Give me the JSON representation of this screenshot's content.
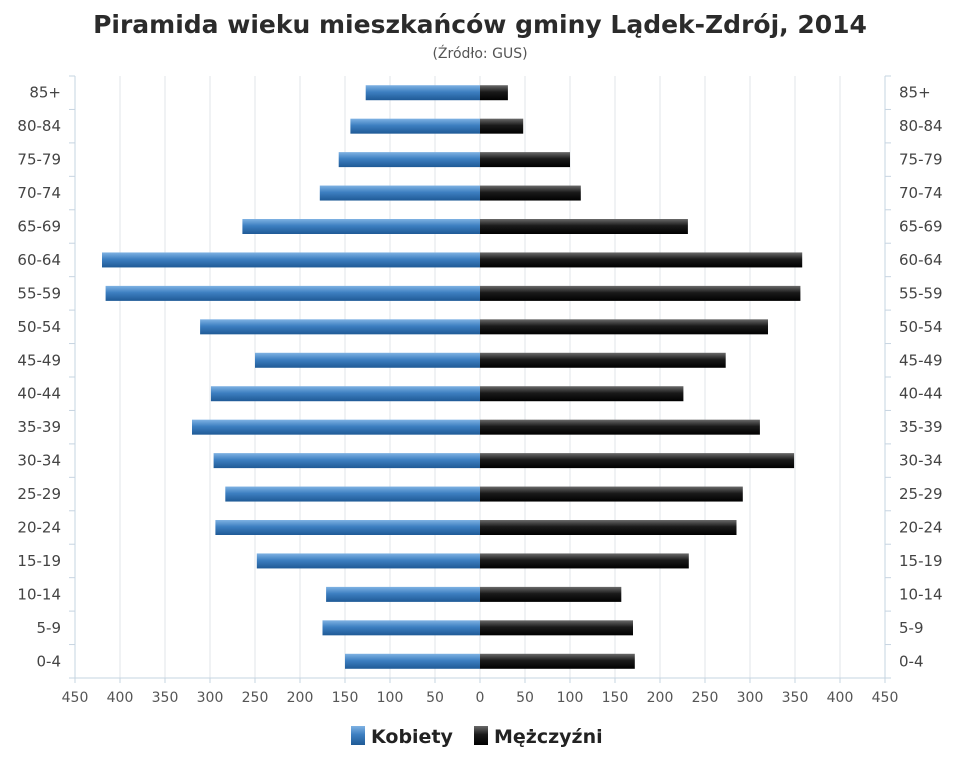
{
  "chart_data": {
    "type": "bar",
    "orientation": "horizontal-pyramid",
    "title": "Piramida wieku mieszkańców gminy Lądek-Zdrój, 2014",
    "subtitle": "(Źródło: GUS)",
    "categories": [
      "85+",
      "80-84",
      "75-79",
      "70-74",
      "65-69",
      "60-64",
      "55-59",
      "50-54",
      "45-49",
      "40-44",
      "35-39",
      "30-34",
      "25-29",
      "20-24",
      "15-19",
      "10-14",
      "5-9",
      "0-4"
    ],
    "series": [
      {
        "name": "Kobiety",
        "color": "#3d7fc1",
        "side": "left",
        "values": [
          127,
          144,
          157,
          178,
          264,
          420,
          416,
          311,
          250,
          299,
          320,
          296,
          283,
          294,
          248,
          171,
          175,
          150
        ]
      },
      {
        "name": "Mężczyźni",
        "color": "#1a1a1a",
        "side": "right",
        "values": [
          31,
          48,
          100,
          112,
          231,
          358,
          356,
          320,
          273,
          226,
          311,
          349,
          292,
          285,
          232,
          157,
          170,
          172
        ]
      }
    ],
    "xlim": [
      -450,
      450
    ],
    "x_ticks": [
      "450",
      "400",
      "350",
      "300",
      "250",
      "200",
      "150",
      "100",
      "50",
      "0",
      "50",
      "100",
      "150",
      "200",
      "250",
      "300",
      "350",
      "400",
      "450"
    ],
    "grid": true,
    "legend": "bottom-center"
  }
}
